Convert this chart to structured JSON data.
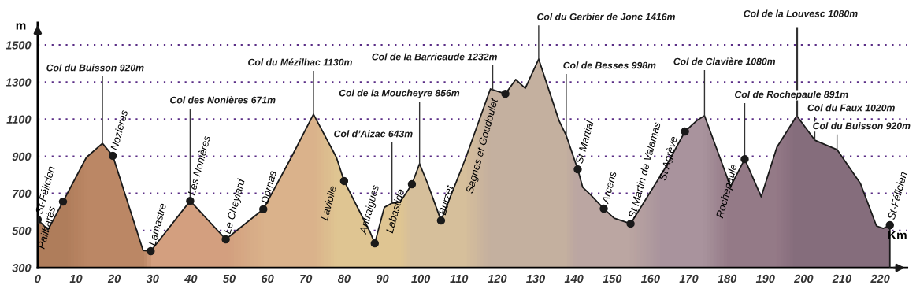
{
  "chart_data": {
    "type": "area",
    "xlabel": "Km",
    "ylabel": "m",
    "xlim": [
      0,
      227
    ],
    "ylim": [
      300,
      1620
    ],
    "xticks": [
      0,
      10,
      20,
      30,
      40,
      50,
      60,
      70,
      80,
      90,
      100,
      110,
      120,
      130,
      140,
      150,
      160,
      170,
      180,
      190,
      200,
      210,
      220
    ],
    "yticks": [
      300,
      500,
      700,
      900,
      1100,
      1300,
      1500
    ],
    "grid": "y",
    "series": [
      {
        "colors": [
          "#a86c44",
          "#a86c44",
          "#a86c44",
          "#b97a52",
          "#b97a52",
          "#b97a52",
          "#b97a52",
          "#d89a74",
          "#d89a74",
          "#d89a74",
          "#e2b384",
          "#e2b384",
          "#e2b384",
          "#e9cd8e",
          "#e9cd8e",
          "#e9cd8e",
          "#e9cd8e",
          "#e9cd8e",
          "#e9cd8e",
          "#e9cd8e",
          "#dcc49a",
          "#dcc49a",
          "#dcc49a",
          "#dcc49a",
          "#dcc49a",
          "#c5b09f",
          "#c5b09f",
          "#c5b09f",
          "#c5b09f",
          "#c5b09f",
          "#c5b09f",
          "#c5b09f",
          "#b8a3a3",
          "#b8a3a3",
          "#b8a3a3",
          "#b8a3a3",
          "#b8a3a3",
          "#b8a3a3",
          "#a08a9c",
          "#a08a9c",
          "#a08a9c",
          "#a08a9c",
          "#85687f",
          "#85687f",
          "#85687f",
          "#85687f",
          "#715771",
          "#715771",
          "#715771",
          "#715771",
          "#715771",
          "#715771",
          "#715771"
        ],
        "x": [
          0,
          2.7,
          6.6,
          12.7,
          16.9,
          19.6,
          27.5,
          29.5,
          39.8,
          49.1,
          58.9,
          66.2,
          72,
          78,
          80,
          86.8,
          88,
          90.5,
          92.5,
          94.6,
          97.7,
          99.7,
          101.8,
          105.3,
          111.8,
          118.2,
          122.1,
          124.8,
          127.3,
          130.8,
          136.1,
          138,
          141,
          142.3,
          144.3,
          147.8,
          150.5,
          154.8,
          163.4,
          169,
          172.1,
          174.1,
          180.9,
          184.6,
          188.9,
          193,
          198.2,
          202.9,
          208.7,
          214.8,
          219,
          220.8,
          222.5
        ],
        "values": [
          559,
          504,
          656,
          894,
          970,
          903,
          393,
          389,
          660,
          453,
          615,
          894,
          1127,
          894,
          767,
          491,
          431,
          625,
          648,
          653,
          750,
          860,
          754,
          554,
          894,
          1263,
          1237,
          1314,
          1267,
          1424,
          1093,
          1012,
          830,
          733,
          694,
          618,
          567,
          537,
          822,
          1034,
          1093,
          1119,
          737,
          885,
          682,
          949,
          1119,
          987,
          936,
          754,
          525,
          512,
          529
        ]
      },
      {
        "type": "scatter",
        "color": "#1a1a1a",
        "marker": "circle",
        "x": [
          0,
          6.6,
          19.6,
          29.5,
          39.8,
          49.1,
          58.9,
          80,
          88,
          97.7,
          105.3,
          122.1,
          141,
          147.8,
          154.8,
          169,
          184.6,
          222.5
        ],
        "values": [
          559,
          656,
          903,
          389,
          660,
          453,
          615,
          767,
          431,
          750,
          554,
          1237,
          830,
          618,
          537,
          1034,
          885,
          529
        ],
        "value_labels": [
          "St-Félicien",
          "Pailharès",
          "Nozieres",
          "Lamastre",
          "Les Nonières",
          "Le Cheylard",
          "Dornas",
          "Laviolle",
          "Antraigues",
          "Labastide",
          "Burzet",
          "Sagnes et Goudoulet",
          "St Martial",
          "Arcens",
          "St Martin de Valamas",
          "St Agrève",
          "Rochepaule",
          "St-Félicien"
        ]
      }
    ],
    "annotations": [
      {
        "text": "Col du Buisson 920m",
        "x": 16.9,
        "y": 970
      },
      {
        "text": "Col des Nonières 671m",
        "x": 39.8,
        "y": 660
      },
      {
        "text": "Col du Mézilhac 1130m",
        "x": 72,
        "y": 1127
      },
      {
        "text": "Col d’Aizac 643m",
        "x": 92.5,
        "y": 648
      },
      {
        "text": "Col de la Moucheyre 856m",
        "x": 99.7,
        "y": 860
      },
      {
        "text": "Col de la Barricaude 1232m",
        "x": 118.8,
        "y": 1255
      },
      {
        "text": "Col du Gerbier de Jonc 1416m",
        "x": 130.8,
        "y": 1424
      },
      {
        "text": "Col de Besses 998m",
        "x": 138,
        "y": 1012
      },
      {
        "text": "Col de Clavière 1080m",
        "x": 174.1,
        "y": 1119
      },
      {
        "text": "Col de Rochepaule 891m",
        "x": 184.6,
        "y": 885
      },
      {
        "text": "Col de la Louvesc 1080m",
        "x": 198.2,
        "y": 1119
      },
      {
        "text": "Col du Faux 1020m",
        "x": 202.9,
        "y": 987
      },
      {
        "text": "Col du Buisson 920m",
        "x": 208.7,
        "y": 936
      }
    ]
  }
}
